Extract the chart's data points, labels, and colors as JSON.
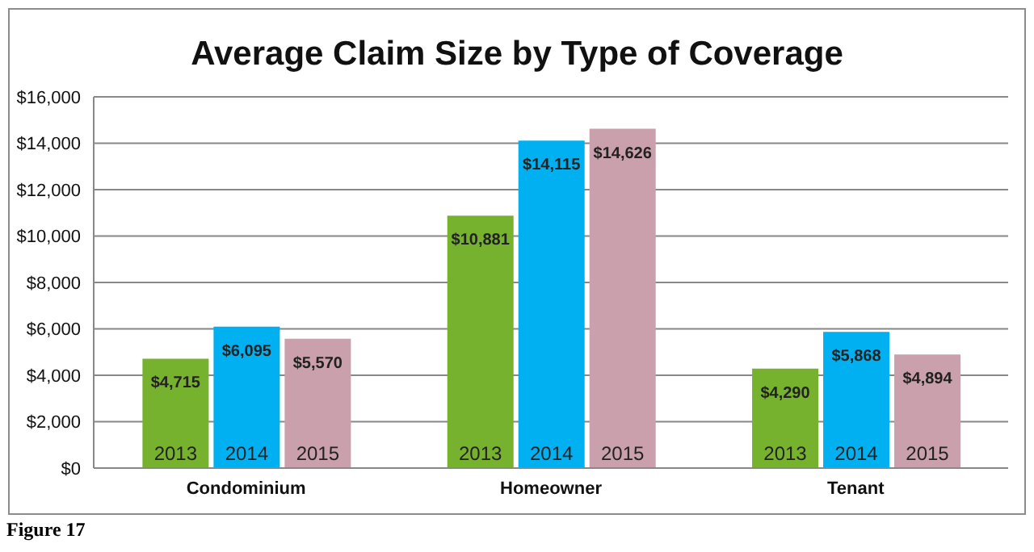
{
  "chart_data": {
    "type": "bar",
    "title": "Average Claim Size by Type of Coverage",
    "categories": [
      "Condominium",
      "Homeowner",
      "Tenant"
    ],
    "series": [
      {
        "name": "2013",
        "color": "#77b22f",
        "values": [
          4715,
          10881,
          4290
        ],
        "value_labels": [
          "$4,715",
          "$10,881",
          "$4,290"
        ]
      },
      {
        "name": "2014",
        "color": "#00b0f0",
        "values": [
          6095,
          14115,
          5868
        ],
        "value_labels": [
          "$6,095",
          "$14,115",
          "$5,868"
        ]
      },
      {
        "name": "2015",
        "color": "#c9a0ac",
        "values": [
          5570,
          14626,
          4894
        ],
        "value_labels": [
          "$5,570",
          "$14,626",
          "$4,894"
        ]
      }
    ],
    "ylim": [
      0,
      16000
    ],
    "yticks": [
      {
        "value": 0,
        "label": "$0"
      },
      {
        "value": 2000,
        "label": "$2,000"
      },
      {
        "value": 4000,
        "label": "$4,000"
      },
      {
        "value": 6000,
        "label": "$6,000"
      },
      {
        "value": 8000,
        "label": "$8,000"
      },
      {
        "value": 10000,
        "label": "$10,000"
      },
      {
        "value": 12000,
        "label": "$12,000"
      },
      {
        "value": 14000,
        "label": "$14,000"
      },
      {
        "value": 16000,
        "label": "$16,000"
      }
    ],
    "grid": "y",
    "annotations": [
      "Figure 17"
    ]
  }
}
